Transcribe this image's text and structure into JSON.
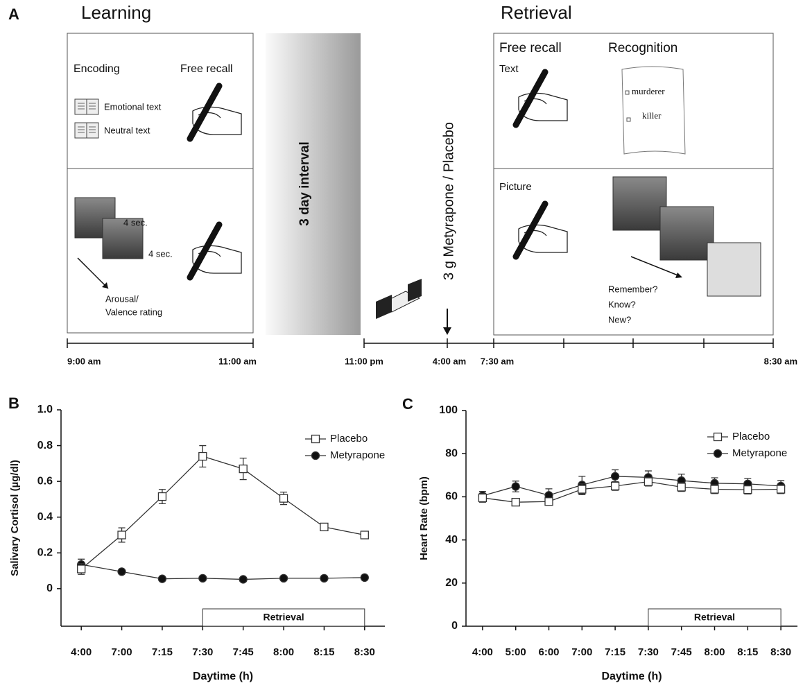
{
  "panel_a": {
    "label": "A",
    "learning": {
      "title": "Learning",
      "encoding": "Encoding",
      "free_recall": "Free recall",
      "emotional_text": "Emotional text",
      "neutral_text": "Neutral text",
      "duration_1": "4 sec.",
      "duration_2": "4 sec.",
      "rating": [
        "Arousal/",
        "Valence rating"
      ]
    },
    "interval": "3 day interval",
    "drug": "3 g Metyrapone / Placebo",
    "retrieval": {
      "title": "Retrieval",
      "free_recall": "Free recall",
      "recognition": "Recognition",
      "text": "Text",
      "words": [
        "murderer",
        "killer"
      ],
      "picture": "Picture",
      "questions": [
        "Remember?",
        "Know?",
        "New?"
      ]
    },
    "timeline": [
      "9:00 am",
      "11:00 am",
      "11:00 pm",
      "4:00 am",
      "7:30 am",
      "8:30 am"
    ]
  },
  "chart_data": [
    {
      "type": "line",
      "panel": "B",
      "xlabel": "Daytime (h)",
      "ylabel": "Salivary Cortisol (µg/dl)",
      "categories": [
        "4:00",
        "7:00",
        "7:15",
        "7:30",
        "7:45",
        "8:00",
        "8:15",
        "8:30"
      ],
      "ylim": [
        -0.21,
        1.0
      ],
      "yticks": [
        0,
        0.2,
        0.4,
        0.6,
        0.8,
        {
          "value": 1,
          "label": "1.0"
        }
      ],
      "annotation": "Retrieval",
      "series": [
        {
          "name": "Placebo",
          "color": "#333333",
          "marker": "square",
          "marker_fill": "#ffffff",
          "values": [
            0.11,
            0.3,
            0.515,
            0.74,
            0.67,
            0.505,
            0.345,
            0.3
          ],
          "errors": [
            0.03,
            0.04,
            0.04,
            0.06,
            0.06,
            0.035,
            0.02,
            0.015
          ]
        },
        {
          "name": "Metyrapone",
          "color": "#333333",
          "marker": "circle",
          "marker_fill": "#111111",
          "values": [
            0.135,
            0.095,
            0.055,
            0.058,
            0.052,
            0.058,
            0.058,
            0.062
          ],
          "errors": [
            0.03,
            0.005,
            0.005,
            0.005,
            0.005,
            0.005,
            0.005,
            0.005
          ]
        }
      ]
    },
    {
      "type": "line",
      "panel": "C",
      "xlabel": "Daytime (h)",
      "ylabel": "Heart Rate (bpm)",
      "categories": [
        "4:00",
        "5:00",
        "6:00",
        "7:00",
        "7:15",
        "7:30",
        "7:45",
        "8:00",
        "8:15",
        "8:30"
      ],
      "ylim": [
        0,
        100
      ],
      "yticks": [
        0,
        20,
        40,
        60,
        80,
        100
      ],
      "annotation": "Retrieval",
      "series": [
        {
          "name": "Placebo",
          "color": "#333333",
          "marker": "square",
          "marker_fill": "#ffffff",
          "values": [
            59.5,
            57.5,
            57.8,
            63.5,
            65,
            67,
            64.5,
            63.5,
            63.3,
            63.5
          ],
          "errors": [
            2,
            1.5,
            1.5,
            2.5,
            2,
            2,
            2,
            2,
            2,
            2
          ]
        },
        {
          "name": "Metyrapone",
          "color": "#333333",
          "marker": "circle",
          "marker_fill": "#111111",
          "values": [
            60.5,
            64.8,
            60.7,
            65.5,
            69.5,
            69,
            67.5,
            66.3,
            66,
            65
          ],
          "errors": [
            2,
            2.5,
            3,
            4,
            3,
            3,
            3,
            2.5,
            2.5,
            2.5
          ]
        }
      ]
    }
  ]
}
